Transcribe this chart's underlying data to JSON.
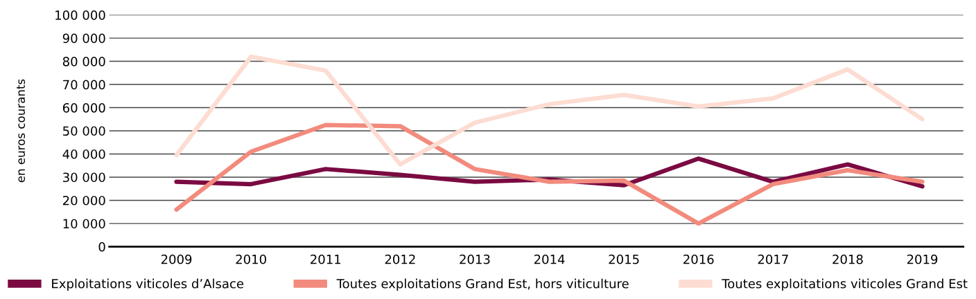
{
  "chart_data": {
    "type": "line",
    "ylabel": "en euros courants",
    "categories": [
      "2009",
      "2010",
      "2011",
      "2012",
      "2013",
      "2014",
      "2015",
      "2016",
      "2017",
      "2018",
      "2019"
    ],
    "series": [
      {
        "name": "Exploitations viticoles d’Alsace",
        "color": "#7b0a42",
        "values": [
          28000,
          27000,
          33500,
          31000,
          28000,
          29000,
          26500,
          38000,
          28000,
          35500,
          26000
        ]
      },
      {
        "name": "Toutes exploitations Grand Est, hors viticulture",
        "color": "#f28b7d",
        "values": [
          16000,
          41000,
          52500,
          52000,
          33500,
          28000,
          28500,
          10000,
          27000,
          33000,
          28000
        ]
      },
      {
        "name": "Toutes exploitations viticoles Grand Est",
        "color": "#fddcd2",
        "values": [
          39500,
          82000,
          76000,
          35500,
          53500,
          61500,
          65500,
          60500,
          64000,
          76500,
          55000
        ]
      }
    ],
    "ylim": [
      0,
      100000
    ],
    "yticks": [
      0,
      {
        "value": 10000,
        "label": "10 000"
      },
      {
        "value": 20000,
        "label": "20 000"
      },
      {
        "value": 30000,
        "label": "30 000"
      },
      {
        "value": 40000,
        "label": "40 000"
      },
      {
        "value": 50000,
        "label": "50 000"
      },
      {
        "value": 60000,
        "label": "60 000"
      },
      {
        "value": 70000,
        "label": "70 000"
      },
      {
        "value": 80000,
        "label": "80 000"
      },
      {
        "value": 90000,
        "label": "90 000"
      },
      {
        "value": 100000,
        "label": "100 000"
      }
    ],
    "grid": "y",
    "legend": "bottom",
    "line_style": "solid",
    "marker": "none"
  }
}
